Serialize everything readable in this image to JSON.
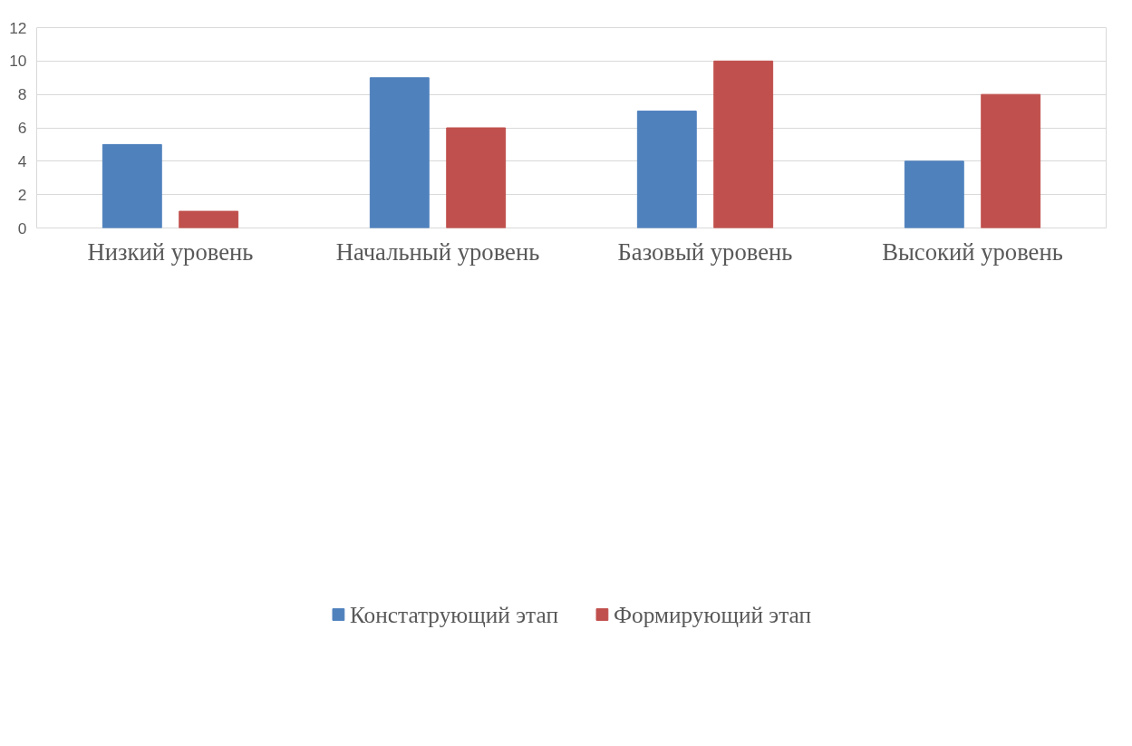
{
  "chart_data": {
    "type": "bar",
    "categories": [
      "Низкий уровень",
      "Начальный уровень",
      "Базовый уровень",
      "Высокий уровень"
    ],
    "series": [
      {
        "name": "Констатрующий этап",
        "color": "#4f81bd",
        "values": [
          5,
          9,
          7,
          4
        ]
      },
      {
        "name": "Формирующий этап",
        "color": "#c0504d",
        "values": [
          1,
          6,
          10,
          8
        ]
      }
    ],
    "ylim": [
      0,
      12
    ],
    "yticks": [
      0,
      2,
      4,
      6,
      8,
      10,
      12
    ],
    "grid": "y",
    "legend": "bottom"
  }
}
